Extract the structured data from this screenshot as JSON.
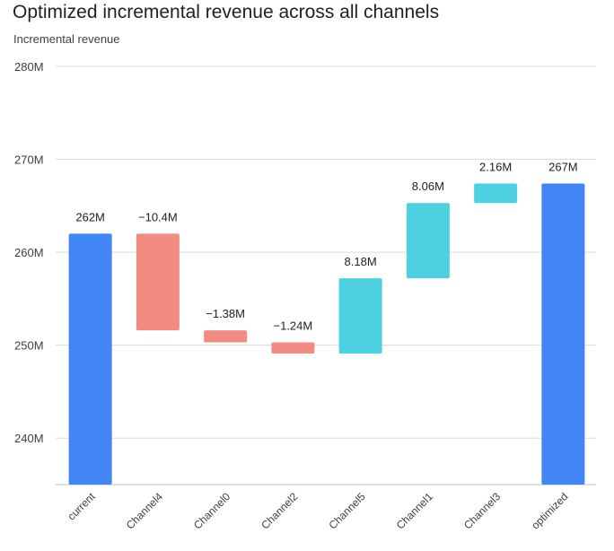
{
  "chart_data": {
    "type": "waterfall",
    "title": "Optimized incremental revenue across all channels",
    "ylabel": "Incremental revenue",
    "xlabel": "",
    "ylim": [
      235,
      280
    ],
    "yticks": [
      240,
      250,
      260,
      270,
      280
    ],
    "ytick_labels": [
      "240M",
      "250M",
      "260M",
      "270M",
      "280M"
    ],
    "grid": true,
    "categories": [
      "current",
      "Channel4",
      "Channel0",
      "Channel2",
      "Channel5",
      "Channel1",
      "Channel3",
      "optimized"
    ],
    "bars": [
      {
        "category": "current",
        "kind": "total",
        "start": 0,
        "end": 262.0,
        "label": "262M"
      },
      {
        "category": "Channel4",
        "kind": "decrease",
        "start": 262.0,
        "end": 251.6,
        "label": "−10.4M"
      },
      {
        "category": "Channel0",
        "kind": "decrease",
        "start": 251.6,
        "end": 250.3,
        "label": "−1.38M"
      },
      {
        "category": "Channel2",
        "kind": "decrease",
        "start": 250.3,
        "end": 249.1,
        "label": "−1.24M"
      },
      {
        "category": "Channel5",
        "kind": "increase",
        "start": 249.1,
        "end": 257.2,
        "label": "8.18M"
      },
      {
        "category": "Channel1",
        "kind": "increase",
        "start": 257.2,
        "end": 265.3,
        "label": "8.06M"
      },
      {
        "category": "Channel3",
        "kind": "increase",
        "start": 265.3,
        "end": 267.4,
        "label": "2.16M"
      },
      {
        "category": "optimized",
        "kind": "total",
        "start": 0,
        "end": 267.4,
        "label": "267M"
      }
    ],
    "colors": {
      "total": "#4285f4",
      "decrease": "#f28b82",
      "increase": "#4dd0e1",
      "grid": "#dadce0",
      "axis": "#bdc1c6"
    }
  }
}
